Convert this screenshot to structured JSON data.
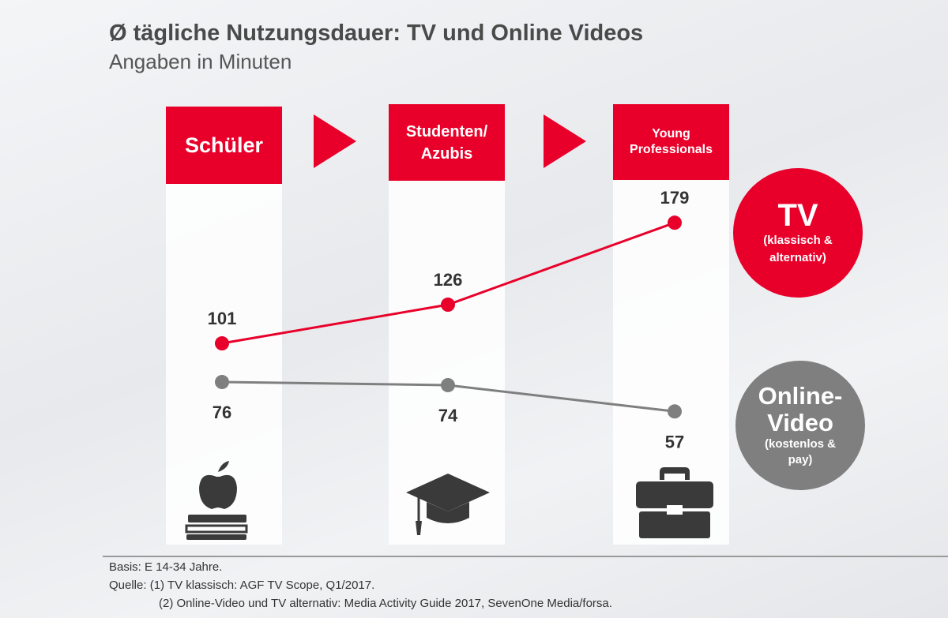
{
  "chart_data": {
    "type": "line",
    "title": "Ø tägliche Nutzungsdauer: TV und Online Videos",
    "subtitle": "Angaben in Minuten",
    "categories": [
      "Schüler",
      "Studenten/ Azubis",
      "Young Professionals"
    ],
    "series": [
      {
        "name": "TV",
        "sublabel": "(klassisch & alternativ)",
        "color": "#e8002a",
        "values": [
          101,
          126,
          179
        ]
      },
      {
        "name": "Online-Video",
        "sublabel": "(kostenlos & pay)",
        "color": "#7f7f7f",
        "values": [
          76,
          74,
          57
        ]
      }
    ],
    "ylabel": "Minuten"
  },
  "icons": [
    "apple-books-icon",
    "graduation-cap-icon",
    "briefcase-icon"
  ],
  "footer": {
    "basis": "Basis: E 14-34 Jahre.",
    "quelle1": "Quelle: (1) TV klassisch: AGF TV Scope, Q1/2017.",
    "quelle2": "(2) Online-Video und TV alternativ: Media Activity Guide 2017, SevenOne Media/forsa."
  }
}
